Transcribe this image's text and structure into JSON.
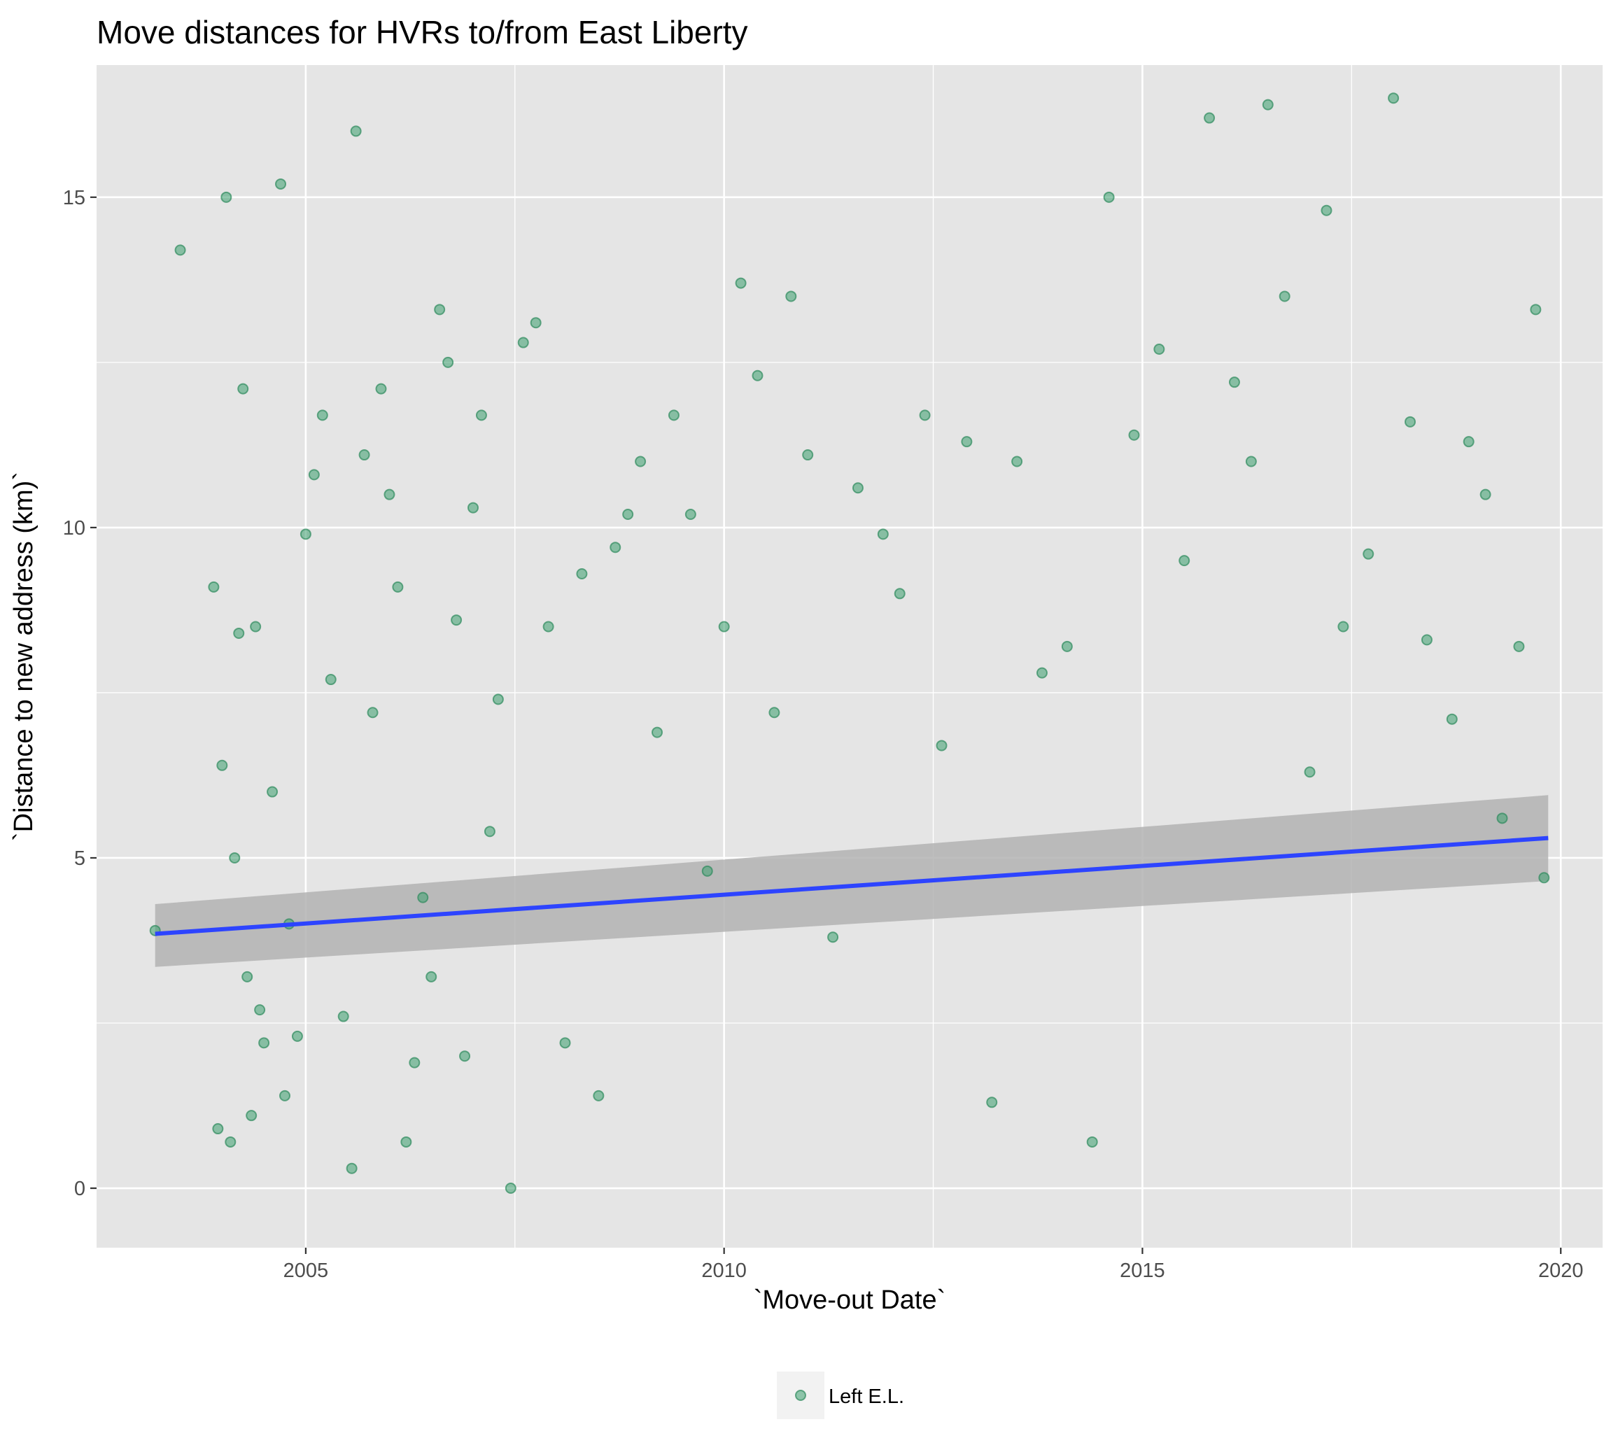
{
  "chart_data": {
    "type": "scatter",
    "title": "Move distances for HVRs to/from East Liberty",
    "xlabel": "`Move-out Date`",
    "ylabel": "`Distance to new address (km)`",
    "xlim": [
      2002.5,
      2020.5
    ],
    "ylim": [
      -0.9,
      17.0
    ],
    "x_ticks": [
      2005,
      2010,
      2015,
      2020
    ],
    "x_tick_labels": [
      "2005",
      "2010",
      "2015",
      "2020"
    ],
    "y_ticks": [
      0,
      5,
      10,
      15
    ],
    "y_tick_labels": [
      "0",
      "5",
      "10",
      "15"
    ],
    "grid": true,
    "legend_position": "bottom",
    "colors": {
      "panel": "#e5e5e5",
      "grid": "#ffffff",
      "points": "#3a9e6e",
      "trend": "#2d44ff",
      "band": "#b3b3b3"
    },
    "series": [
      {
        "name": "Left E.L.",
        "x": [
          2003.2,
          2003.5,
          2003.9,
          2003.95,
          2004.0,
          2004.05,
          2004.1,
          2004.15,
          2004.2,
          2004.25,
          2004.3,
          2004.35,
          2004.4,
          2004.45,
          2004.5,
          2004.6,
          2004.7,
          2004.75,
          2004.8,
          2004.9,
          2005.0,
          2005.1,
          2005.2,
          2005.3,
          2005.45,
          2005.55,
          2005.6,
          2005.7,
          2005.8,
          2005.9,
          2006.0,
          2006.1,
          2006.2,
          2006.3,
          2006.4,
          2006.5,
          2006.6,
          2006.7,
          2006.8,
          2006.9,
          2007.0,
          2007.1,
          2007.2,
          2007.3,
          2007.45,
          2007.6,
          2007.75,
          2007.9,
          2008.1,
          2008.3,
          2008.5,
          2008.7,
          2008.85,
          2009.0,
          2009.2,
          2009.4,
          2009.6,
          2009.8,
          2010.0,
          2010.2,
          2010.4,
          2010.6,
          2010.8,
          2011.0,
          2011.3,
          2011.6,
          2011.9,
          2012.1,
          2012.4,
          2012.6,
          2012.9,
          2013.2,
          2013.5,
          2013.8,
          2014.1,
          2014.4,
          2014.6,
          2014.9,
          2015.2,
          2015.5,
          2015.8,
          2016.1,
          2016.3,
          2016.5,
          2016.7,
          2017.0,
          2017.2,
          2017.4,
          2017.7,
          2018.0,
          2018.2,
          2018.4,
          2018.7,
          2018.9,
          2019.1,
          2019.3,
          2019.5,
          2019.7,
          2019.8
        ],
        "y": [
          3.9,
          14.2,
          9.1,
          0.9,
          6.4,
          15.0,
          0.7,
          5.0,
          8.4,
          12.1,
          3.2,
          1.1,
          8.5,
          2.7,
          2.2,
          6.0,
          15.2,
          1.4,
          4.0,
          2.3,
          9.9,
          10.8,
          11.7,
          7.7,
          2.6,
          0.3,
          16.0,
          11.1,
          7.2,
          12.1,
          10.5,
          9.1,
          0.7,
          1.9,
          4.4,
          3.2,
          13.3,
          12.5,
          8.6,
          2.0,
          10.3,
          11.7,
          5.4,
          7.4,
          0.0,
          12.8,
          13.1,
          8.5,
          2.2,
          9.3,
          1.4,
          9.7,
          10.2,
          11.0,
          6.9,
          11.7,
          10.2,
          4.8,
          8.5,
          13.7,
          12.3,
          7.2,
          13.5,
          11.1,
          3.8,
          10.6,
          9.9,
          9.0,
          11.7,
          6.7,
          11.3,
          1.3,
          11.0,
          7.8,
          8.2,
          0.7,
          15.0,
          11.4,
          12.7,
          9.5,
          16.2,
          12.2,
          11.0,
          16.4,
          13.5,
          6.3,
          14.8,
          8.5,
          9.6,
          16.5,
          11.6,
          8.3,
          7.1,
          11.3,
          10.5,
          5.6,
          8.2,
          13.3,
          4.7
        ]
      }
    ],
    "trend": {
      "x": [
        2003.2,
        2019.85
      ],
      "y": [
        3.85,
        5.3
      ],
      "band_lower": [
        3.35,
        4.65
      ],
      "band_upper": [
        4.3,
        5.95
      ]
    }
  }
}
